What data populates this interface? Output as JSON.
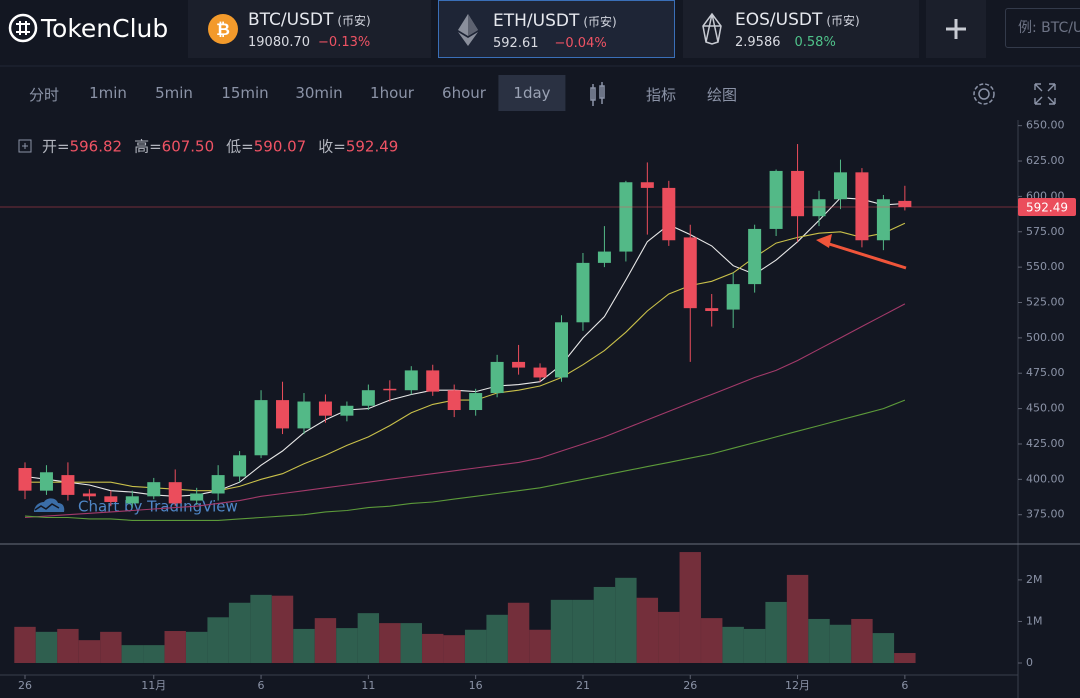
{
  "header": {
    "logo": "TokenClub",
    "tickers": [
      {
        "pair": "BTC/USDT",
        "exchange": "(币安)",
        "price": "19080.70",
        "change": "−0.13%"
      },
      {
        "pair": "ETH/USDT",
        "exchange": "(币安)",
        "price": "592.61",
        "change": "−0.04%"
      },
      {
        "pair": "EOS/USDT",
        "exchange": "(币安)",
        "price": "2.9586",
        "change": "0.58%"
      }
    ],
    "search_placeholder": "例: BTC/U"
  },
  "toolbar": {
    "intervals": [
      "分时",
      "1min",
      "5min",
      "15min",
      "30min",
      "1hour",
      "6hour",
      "1day"
    ],
    "active_interval": "1day",
    "indicators": "指标",
    "draw": "绘图"
  },
  "ohlc": [
    {
      "label": "开=",
      "value": "596.82"
    },
    {
      "label": "高=",
      "value": "607.50"
    },
    {
      "label": "低=",
      "value": "590.07"
    },
    {
      "label": "收=",
      "value": "592.49"
    }
  ],
  "watermark": "Chart by TradingView",
  "chart_data": {
    "type": "candlestick",
    "categories": [
      "26",
      null,
      null,
      null,
      null,
      null,
      "11月",
      null,
      null,
      null,
      null,
      "6",
      null,
      null,
      null,
      null,
      "11",
      null,
      null,
      null,
      null,
      "16",
      null,
      null,
      null,
      null,
      "21",
      null,
      null,
      null,
      null,
      "26",
      null,
      null,
      null,
      null,
      "12月",
      null,
      null,
      null,
      null,
      "6"
    ],
    "open": [
      408,
      392,
      403,
      390,
      388,
      383,
      388,
      398,
      385,
      390,
      402,
      417,
      456,
      436,
      455,
      445,
      452,
      464,
      463,
      477,
      463,
      449,
      461,
      483,
      479,
      472,
      511,
      553,
      561,
      610,
      606,
      571,
      521,
      520,
      538,
      577,
      618,
      586,
      598,
      617,
      569,
      596.82
    ],
    "high": [
      412,
      410,
      412,
      393,
      392,
      392,
      401,
      407,
      394,
      410,
      420,
      463,
      469,
      461,
      460,
      455,
      467,
      470,
      480,
      481,
      467,
      464,
      488,
      495,
      482,
      516,
      560,
      579,
      611,
      624,
      611,
      580,
      531,
      546,
      580,
      619,
      637,
      604,
      626,
      620,
      601,
      607.5
    ],
    "low": [
      386,
      389,
      385,
      385,
      381,
      380,
      386,
      381,
      382,
      385,
      398,
      415,
      432,
      432,
      440,
      441,
      449,
      455,
      460,
      459,
      444,
      445,
      458,
      474,
      469,
      469,
      505,
      550,
      554,
      573,
      565,
      483,
      508,
      507,
      532,
      572,
      568,
      579,
      591,
      564,
      562,
      590.07
    ],
    "close": [
      392,
      405,
      389,
      388,
      384,
      388,
      398,
      383,
      390,
      403,
      417,
      456,
      436,
      455,
      445,
      452,
      463,
      463,
      477,
      462,
      449,
      461,
      483,
      479,
      472,
      511,
      553,
      561,
      610,
      606,
      569,
      521,
      519,
      538,
      577,
      618,
      586,
      598,
      617,
      569,
      598,
      592.49
    ],
    "up_color": "#53b987",
    "down_color": "#eb4d5c",
    "lines": [
      {
        "color": "#e8e8e8",
        "values": [
          402,
          400,
          398,
          396,
          392,
          391,
          389,
          388,
          389,
          392,
          398,
          410,
          420,
          433,
          442,
          449,
          450,
          456,
          460,
          463,
          463,
          462,
          466,
          467,
          469,
          481,
          500,
          515,
          541,
          568,
          580,
          573,
          565,
          551,
          545,
          555,
          568,
          583,
          599,
          598,
          594,
          595
        ]
      },
      {
        "color": "#c9c04a",
        "values": [
          398,
          398,
          398,
          398,
          398,
          395,
          394,
          393,
          392,
          392,
          395,
          400,
          404,
          411,
          417,
          424,
          430,
          438,
          447,
          453,
          456,
          456,
          461,
          463,
          466,
          472,
          481,
          491,
          504,
          519,
          531,
          537,
          540,
          546,
          557,
          567,
          571,
          574,
          575,
          571,
          574,
          581
        ]
      },
      {
        "color": "#a33a6a",
        "values": [
          373,
          374,
          375,
          376,
          377,
          378,
          379,
          380,
          381,
          383,
          385,
          388,
          390,
          392,
          394,
          396,
          398,
          400,
          402,
          404,
          406,
          408,
          410,
          412,
          415,
          420,
          425,
          430,
          436,
          442,
          448,
          454,
          460,
          466,
          472,
          477,
          484,
          492,
          500,
          508,
          516,
          524
        ]
      },
      {
        "color": "#5c9a3a",
        "values": [
          374,
          373,
          373,
          372,
          372,
          371,
          371,
          371,
          371,
          371,
          372,
          373,
          374,
          375,
          377,
          378,
          380,
          381,
          383,
          384,
          386,
          388,
          390,
          392,
          394,
          397,
          400,
          403,
          406,
          409,
          412,
          415,
          418,
          422,
          426,
          430,
          434,
          438,
          442,
          446,
          450,
          456
        ]
      }
    ],
    "ylim": [
      355,
      654
    ],
    "yticks": [
      {
        "value": 375,
        "label": "375.00"
      },
      {
        "value": 400,
        "label": "400.00"
      },
      {
        "value": 425,
        "label": "425.00"
      },
      {
        "value": 450,
        "label": "450.00"
      },
      {
        "value": 475,
        "label": "475.00"
      },
      {
        "value": 500,
        "label": "500.00"
      },
      {
        "value": 525,
        "label": "525.00"
      },
      {
        "value": 550,
        "label": "550.00"
      },
      {
        "value": 575,
        "label": "575.00"
      },
      {
        "value": 600,
        "label": "600.00"
      },
      {
        "value": 625,
        "label": "625.00"
      },
      {
        "value": 650,
        "label": "650.00"
      }
    ],
    "volume": [
      870000,
      750000,
      820000,
      550000,
      750000,
      430000,
      430000,
      770000,
      750000,
      1100000,
      1450000,
      1640000,
      1620000,
      820000,
      1080000,
      840000,
      1200000,
      960000,
      960000,
      700000,
      670000,
      800000,
      1160000,
      1450000,
      800000,
      1520000,
      1520000,
      1830000,
      2050000,
      1570000,
      1230000,
      2670000,
      1080000,
      870000,
      820000,
      1470000,
      2120000,
      1060000,
      920000,
      1060000,
      720000,
      240000
    ],
    "volume_ylim": [
      0,
      2840000
    ],
    "volume_ticks": [
      0,
      {
        "value": 1000000,
        "label": "1M"
      },
      {
        "value": 2000000,
        "label": "2M"
      }
    ],
    "grid": false
  }
}
